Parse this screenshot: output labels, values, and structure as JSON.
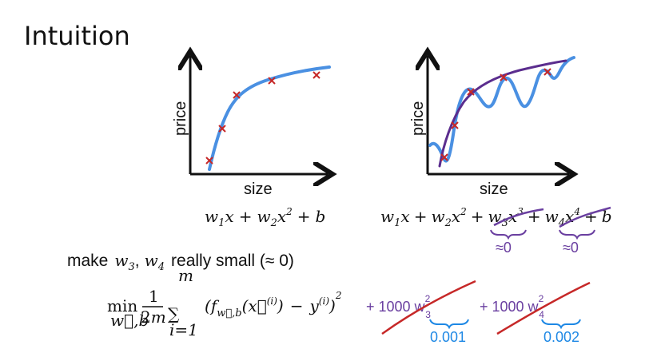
{
  "title": "Intuition",
  "left_plot": {
    "xlabel": "size",
    "ylabel": "price",
    "equation": {
      "t1_w": "w",
      "t1_wsub": "1",
      "t1_x": "x",
      "op1": "+",
      "t2_w": "w",
      "t2_wsub": "2",
      "t2_x": "x",
      "t2_xsup": "2",
      "op2": "+",
      "b": "b"
    }
  },
  "right_plot": {
    "xlabel": "size",
    "ylabel": "price",
    "equation": {
      "t1_w": "w",
      "t1_wsub": "1",
      "t1_x": "x",
      "op1": "+",
      "t2_w": "w",
      "t2_wsub": "2",
      "t2_x": "x",
      "t2_xsup": "2",
      "op2": "+",
      "t3_w": "w",
      "t3_wsub": "3",
      "t3_x": "x",
      "t3_xsup": "3",
      "op3": "+",
      "t4_w": "w",
      "t4_wsub": "4",
      "t4_x": "x",
      "t4_xsup": "4",
      "op4": "+",
      "b": "b"
    },
    "annotations": [
      "≈0",
      "≈0"
    ]
  },
  "make_text": {
    "prefix": "make",
    "w3": "w",
    "w3_sub": "3",
    "comma": ",",
    "w4": "w",
    "w4_sub": "4",
    "suffix": "really small (≈ 0)"
  },
  "cost": {
    "min": "min",
    "min_sub": "w⃗,b",
    "frac_num": "1",
    "frac_den_2": "2",
    "frac_den_m": "m",
    "sum_top": "m",
    "sum_symbol": "∑",
    "sum_bottom": "i=1",
    "body_open": "(",
    "f": "f",
    "f_sub": "w⃗,b",
    "arg": "(x⃗",
    "arg_sup": "(i)",
    "arg_close": ")",
    "minus": "−",
    "y": "y",
    "y_sup": "(i)",
    "close": ")",
    "power": "2",
    "penalty1": "+ 1000 w",
    "penalty1_sup": "2",
    "penalty1_sub": "3",
    "penalty2": "+ 1000 w",
    "penalty2_sup": "2",
    "penalty2_sub": "4",
    "value1": "0.001",
    "value2": "0.002"
  },
  "colors": {
    "fit_blue": "#4a90e2",
    "overfit_blue": "#4a90e2",
    "good_fit_purple": "#5b2d8e",
    "marker_red": "#c62828",
    "annotation_purple": "#6a3fa0",
    "annotation_blue": "#1e88e5",
    "strike_red": "#c62828"
  }
}
